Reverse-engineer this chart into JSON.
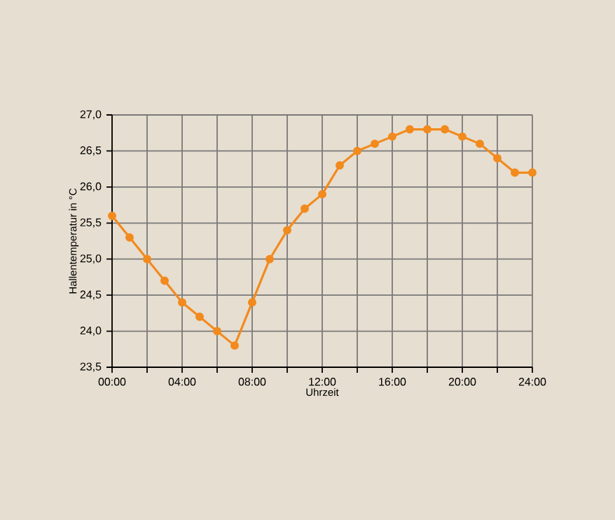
{
  "chart_data": {
    "type": "line",
    "xlabel": "Uhrzeit",
    "ylabel": "Hallentemperatur in °C",
    "x": [
      0,
      1,
      2,
      3,
      4,
      5,
      6,
      7,
      8,
      9,
      10,
      11,
      12,
      13,
      14,
      15,
      16,
      17,
      18,
      19,
      20,
      21,
      22,
      23,
      24
    ],
    "series": [
      {
        "color": "#f28a1e",
        "values": [
          25.6,
          25.3,
          25.0,
          24.7,
          24.4,
          24.2,
          24.0,
          23.8,
          24.4,
          25.0,
          25.4,
          25.7,
          25.9,
          26.3,
          26.5,
          26.6,
          26.7,
          26.8,
          26.8,
          26.8,
          26.7,
          26.6,
          26.4,
          26.2,
          26.2
        ]
      }
    ],
    "xlim": [
      0,
      24
    ],
    "ylim": [
      23.5,
      27.0
    ],
    "xticks": [
      {
        "value": 0,
        "label": "00:00"
      },
      {
        "value": 2,
        "label": null
      },
      {
        "value": 4,
        "label": "04:00"
      },
      {
        "value": 6,
        "label": null
      },
      {
        "value": 8,
        "label": "08:00"
      },
      {
        "value": 10,
        "label": null
      },
      {
        "value": 12,
        "label": "12:00"
      },
      {
        "value": 14,
        "label": null
      },
      {
        "value": 16,
        "label": "16:00"
      },
      {
        "value": 18,
        "label": null
      },
      {
        "value": 20,
        "label": "20:00"
      },
      {
        "value": 22,
        "label": null
      },
      {
        "value": 24,
        "label": "24:00"
      }
    ],
    "yticks": [
      {
        "value": 23.5,
        "label": "23,5"
      },
      {
        "value": 24.0,
        "label": "24,0"
      },
      {
        "value": 24.5,
        "label": "24,5"
      },
      {
        "value": 25.0,
        "label": "25,0"
      },
      {
        "value": 25.5,
        "label": "25,5"
      },
      {
        "value": 26.0,
        "label": "26,0"
      },
      {
        "value": 26.5,
        "label": "26,5"
      },
      {
        "value": 27.0,
        "label": "27,0"
      }
    ],
    "grid": true,
    "marker": "circle",
    "line_style": "solid"
  }
}
